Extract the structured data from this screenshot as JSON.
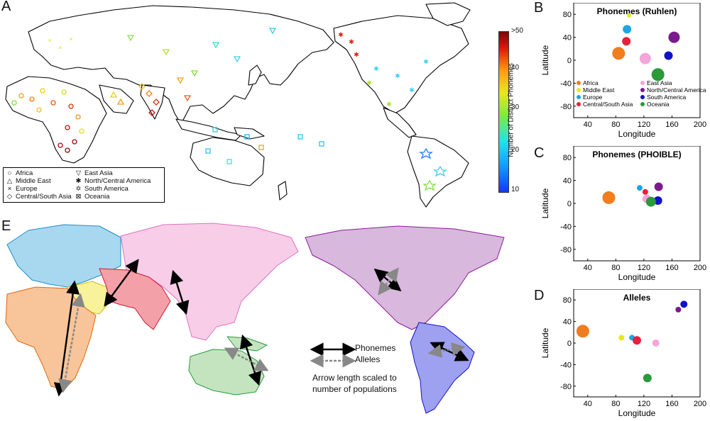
{
  "panels": {
    "a": "A",
    "b": "B",
    "c": "C",
    "d": "D",
    "e": "E"
  },
  "map_a": {
    "legend_col1": [
      {
        "symbol": "○",
        "label": "Africa"
      },
      {
        "symbol": "△",
        "label": "Middle East"
      },
      {
        "symbol": "×",
        "label": "Europe"
      },
      {
        "symbol": "◇",
        "label": "Central/South Asia"
      }
    ],
    "legend_col2": [
      {
        "symbol": "▽",
        "label": "East Asia"
      },
      {
        "symbol": "✱",
        "label": "North/Central America"
      },
      {
        "symbol": "✡",
        "label": "South America"
      },
      {
        "symbol": "⊠",
        "label": "Oceania"
      }
    ],
    "colorbar": {
      "title": "Number of Distinct Phonemes",
      "ticks": [
        ">50",
        "40",
        "30",
        "20",
        "10"
      ]
    }
  },
  "map_e": {
    "arrow_legend": {
      "phonemes": "Phonemes",
      "alleles": "Alleles",
      "note_line1": "Arrow length scaled to",
      "note_line2": "number of populations"
    }
  },
  "colors": {
    "Africa": "#f07d1e",
    "Middle East": "#e8e81a",
    "Europe": "#1ca7e0",
    "Central/South Asia": "#e8203a",
    "East Asia": "#f4a6d8",
    "North/Central America": "#7b1a8c",
    "South America": "#1212c8",
    "Oceania": "#2a9a3a"
  },
  "chart_data": [
    {
      "type": "scatter",
      "title": "Phonemes (Ruhlen)",
      "xlabel": "Longitude",
      "ylabel": "Latitude",
      "xlim": [
        20,
        200
      ],
      "ylim": [
        -100,
        100
      ],
      "xticks": [
        "40",
        "80",
        "120",
        "160",
        "200"
      ],
      "yticks": [
        "80",
        "40",
        "0",
        "-40",
        "-80"
      ],
      "legend_position": "bottom",
      "legend": [
        "Africa",
        "Middle East",
        "Europe",
        "Central/South Asia",
        "East Asia",
        "North/Central America",
        "South America",
        "Oceania"
      ],
      "series": [
        {
          "name": "Africa",
          "x": 84,
          "y": 12,
          "size": 9
        },
        {
          "name": "Middle East",
          "x": 99,
          "y": 78,
          "size": 3
        },
        {
          "name": "Europe",
          "x": 96,
          "y": 54,
          "size": 6
        },
        {
          "name": "Central/South Asia",
          "x": 95,
          "y": 33,
          "size": 6
        },
        {
          "name": "East Asia",
          "x": 122,
          "y": 3,
          "size": 8
        },
        {
          "name": "North/Central America",
          "x": 163,
          "y": 40,
          "size": 8
        },
        {
          "name": "South America",
          "x": 155,
          "y": 8,
          "size": 6
        },
        {
          "name": "Oceania",
          "x": 140,
          "y": -25,
          "size": 9
        }
      ]
    },
    {
      "type": "scatter",
      "title": "Phonemes (PHOIBLE)",
      "xlabel": "Longitude",
      "ylabel": "Latitude",
      "xlim": [
        20,
        200
      ],
      "ylim": [
        -100,
        100
      ],
      "xticks": [
        "40",
        "80",
        "120",
        "160",
        "200"
      ],
      "yticks": [
        "80",
        "40",
        "0",
        "-40",
        "-80"
      ],
      "series": [
        {
          "name": "Africa",
          "x": 70,
          "y": 10,
          "size": 9
        },
        {
          "name": "Middle East",
          "x": 140,
          "y": 25,
          "size": 3
        },
        {
          "name": "Europe",
          "x": 114,
          "y": 27,
          "size": 4
        },
        {
          "name": "Central/South Asia",
          "x": 122,
          "y": 20,
          "size": 4
        },
        {
          "name": "East Asia",
          "x": 124,
          "y": 8,
          "size": 6
        },
        {
          "name": "North/Central America",
          "x": 141,
          "y": 29,
          "size": 6
        },
        {
          "name": "South America",
          "x": 140,
          "y": 5,
          "size": 6
        },
        {
          "name": "Oceania",
          "x": 130,
          "y": 3,
          "size": 7
        }
      ]
    },
    {
      "type": "scatter",
      "title": "Alleles",
      "xlabel": "Longitude",
      "ylabel": "Latitude",
      "xlim": [
        20,
        200
      ],
      "ylim": [
        -100,
        100
      ],
      "xticks": [
        "40",
        "80",
        "120",
        "160",
        "200"
      ],
      "yticks": [
        "80",
        "40",
        "0",
        "-40",
        "-80"
      ],
      "series": [
        {
          "name": "Africa",
          "x": 33,
          "y": 22,
          "size": 9
        },
        {
          "name": "Middle East",
          "x": 88,
          "y": 10,
          "size": 4
        },
        {
          "name": "Europe",
          "x": 103,
          "y": 10,
          "size": 4
        },
        {
          "name": "Central/South Asia",
          "x": 110,
          "y": 5,
          "size": 6
        },
        {
          "name": "East Asia",
          "x": 137,
          "y": 0,
          "size": 5
        },
        {
          "name": "North/Central America",
          "x": 169,
          "y": 62,
          "size": 4
        },
        {
          "name": "South America",
          "x": 177,
          "y": 72,
          "size": 5
        },
        {
          "name": "Oceania",
          "x": 125,
          "y": -65,
          "size": 6
        }
      ]
    }
  ]
}
